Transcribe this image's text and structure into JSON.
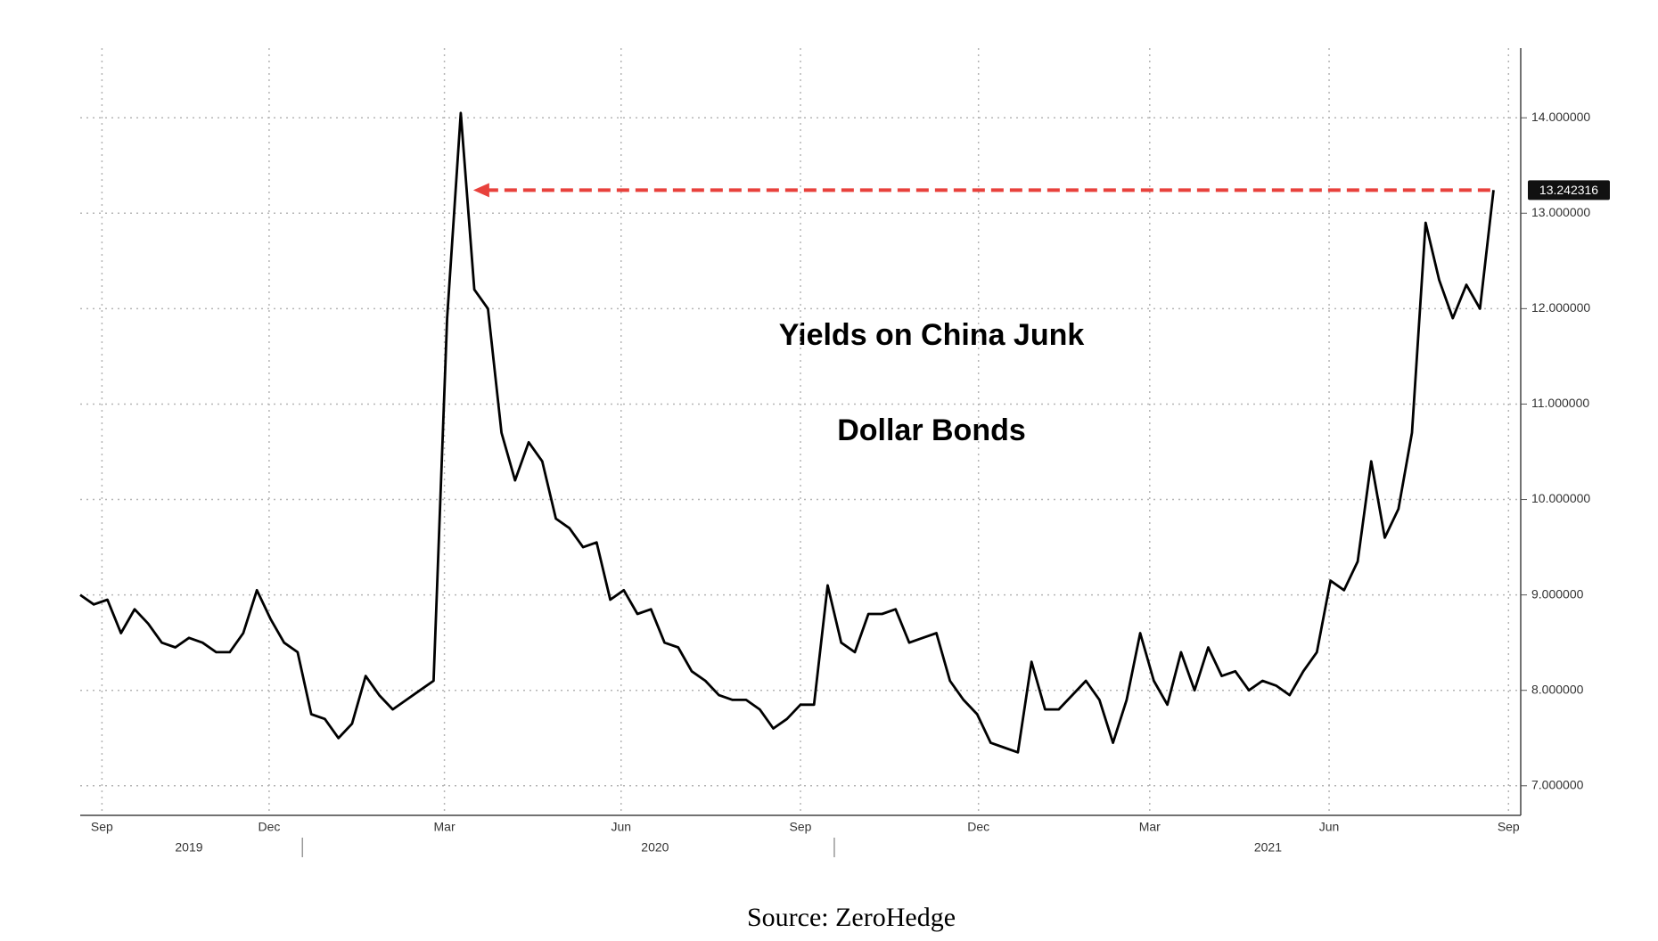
{
  "chart_data": {
    "type": "line",
    "annotations": [
      "Yields on China Junk",
      "Dollar Bonds"
    ],
    "source": "Source: ZeroHedge",
    "color": "#000000",
    "arrow_color": "#e8413c",
    "grid": true,
    "values": [
      9.0,
      8.9,
      8.95,
      8.6,
      8.85,
      8.7,
      8.5,
      8.45,
      8.55,
      8.5,
      8.4,
      8.4,
      8.6,
      9.05,
      8.75,
      8.5,
      8.4,
      7.75,
      7.7,
      7.5,
      7.65,
      8.15,
      7.95,
      7.8,
      7.9,
      8.0,
      8.1,
      11.9,
      14.05,
      12.2,
      12.0,
      10.7,
      10.2,
      10.6,
      10.4,
      9.8,
      9.7,
      9.5,
      9.55,
      8.95,
      9.05,
      8.8,
      8.85,
      8.5,
      8.45,
      8.2,
      8.1,
      7.95,
      7.9,
      7.9,
      7.8,
      7.6,
      7.7,
      7.85,
      7.85,
      9.1,
      8.5,
      8.4,
      8.8,
      8.8,
      8.85,
      8.5,
      8.55,
      8.6,
      8.1,
      7.9,
      7.75,
      7.45,
      7.4,
      7.35,
      8.3,
      7.8,
      7.8,
      7.95,
      8.1,
      7.9,
      7.45,
      7.9,
      8.6,
      8.1,
      7.85,
      8.4,
      8.0,
      8.45,
      8.15,
      8.2,
      8.0,
      8.1,
      8.05,
      7.95,
      8.2,
      8.4,
      9.15,
      9.05,
      9.35,
      10.4,
      9.6,
      9.9,
      10.7,
      12.9,
      12.3,
      11.9,
      12.25,
      12.0,
      13.242316
    ],
    "xlim": [
      0,
      106
    ],
    "xticks": [
      {
        "value": 1.6,
        "label": "Sep"
      },
      {
        "value": 13.9,
        "label": "Dec"
      },
      {
        "value": 26.8,
        "label": "Mar"
      },
      {
        "value": 39.8,
        "label": "Jun"
      },
      {
        "value": 53,
        "label": "Sep"
      },
      {
        "value": 66.1,
        "label": "Dec"
      },
      {
        "value": 78.7,
        "label": "Mar"
      },
      {
        "value": 91.9,
        "label": "Jun"
      },
      {
        "value": 105.1,
        "label": "Sep"
      }
    ],
    "year_ticks": [
      {
        "value": 8,
        "label": "2019"
      },
      {
        "value": 42.3,
        "label": "2020"
      },
      {
        "value": 87.4,
        "label": "2021"
      }
    ],
    "ylim": [
      6.69,
      14.73
    ],
    "yticks": [
      {
        "value": 7,
        "label": "7.000000"
      },
      {
        "value": 8,
        "label": "8.000000"
      },
      {
        "value": 9,
        "label": "9.000000"
      },
      {
        "value": 10,
        "label": "10.000000"
      },
      {
        "value": 11,
        "label": "11.000000"
      },
      {
        "value": 12,
        "label": "12.000000"
      },
      {
        "value": 13,
        "label": "13.000000"
      },
      {
        "value": 14,
        "label": "14.000000"
      }
    ]
  }
}
